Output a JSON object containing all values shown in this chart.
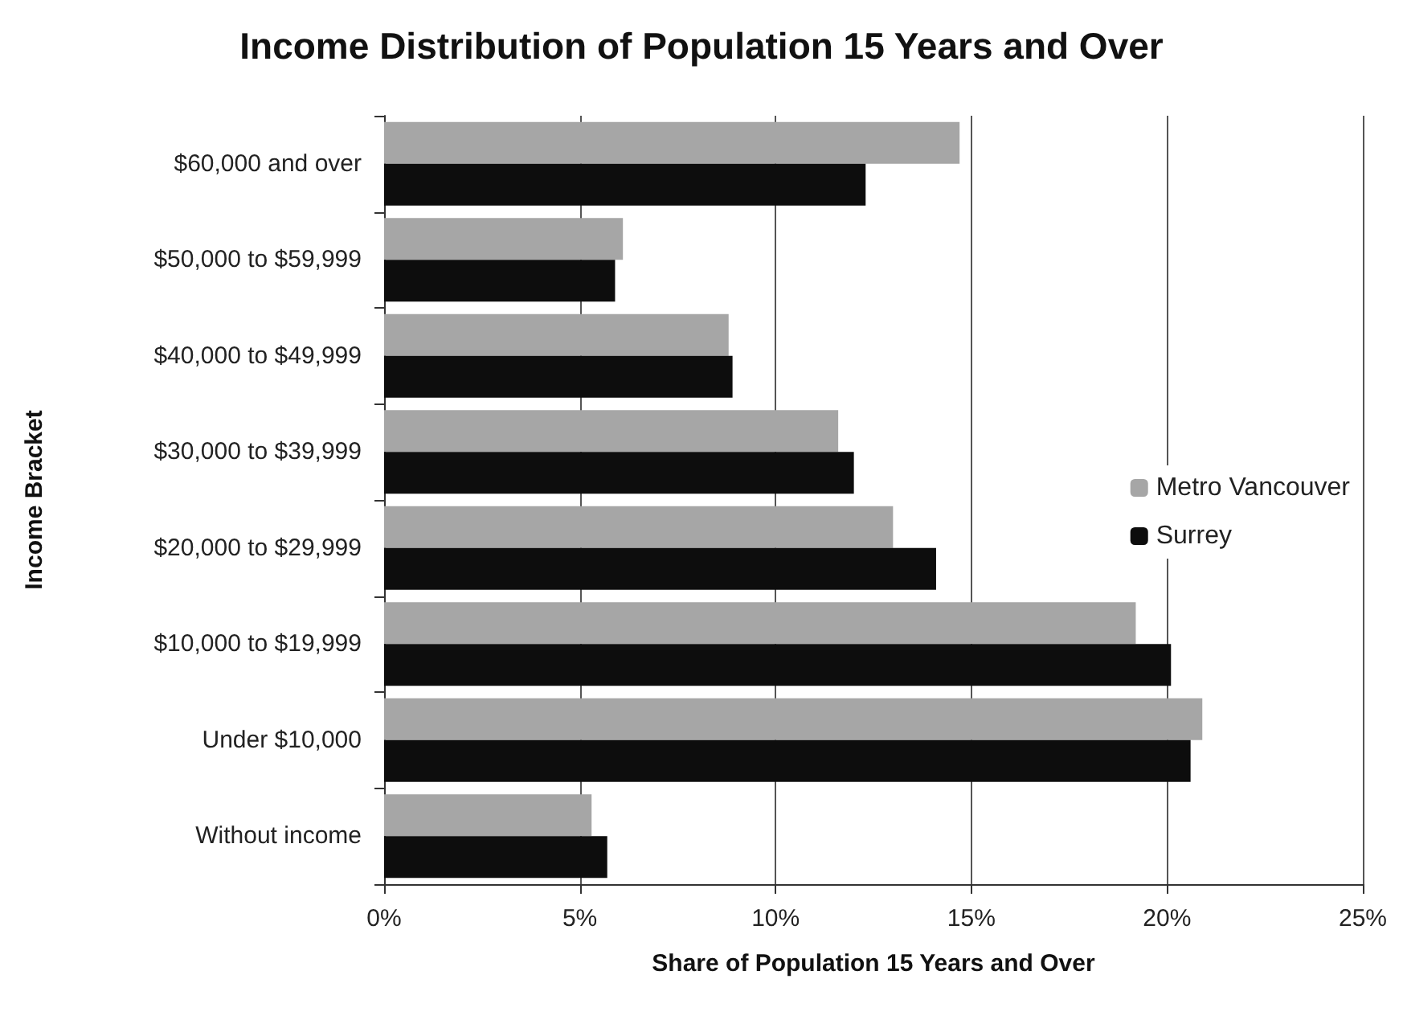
{
  "chart_data": {
    "type": "bar",
    "orientation": "horizontal",
    "title": "Income Distribution of Population 15 Years and Over",
    "xlabel": "Share of Population 15 Years and Over",
    "ylabel": "Income Bracket",
    "categories": [
      "$60,000 and over",
      "$50,000 to $59,999",
      "$40,000 to $49,999",
      "$30,000 to $39,999",
      "$20,000 to $29,999",
      "$10,000 to $19,999",
      "Under $10,000",
      "Without income"
    ],
    "series": [
      {
        "name": "Metro Vancouver",
        "color": "#a6a6a6",
        "values": [
          14.7,
          6.1,
          8.8,
          11.6,
          13.0,
          19.2,
          20.9,
          5.3
        ]
      },
      {
        "name": "Surrey",
        "color": "#0d0d0d",
        "values": [
          12.3,
          5.9,
          8.9,
          12.0,
          14.1,
          20.1,
          20.6,
          5.7
        ]
      }
    ],
    "xlim": [
      0,
      25
    ],
    "xticks": [
      {
        "value": 0,
        "label": "0%"
      },
      {
        "value": 5,
        "label": "5%"
      },
      {
        "value": 10,
        "label": "10%"
      },
      {
        "value": 15,
        "label": "15%"
      },
      {
        "value": 20,
        "label": "20%"
      },
      {
        "value": 25,
        "label": "25%"
      }
    ],
    "grid": "x",
    "legend": "right"
  }
}
